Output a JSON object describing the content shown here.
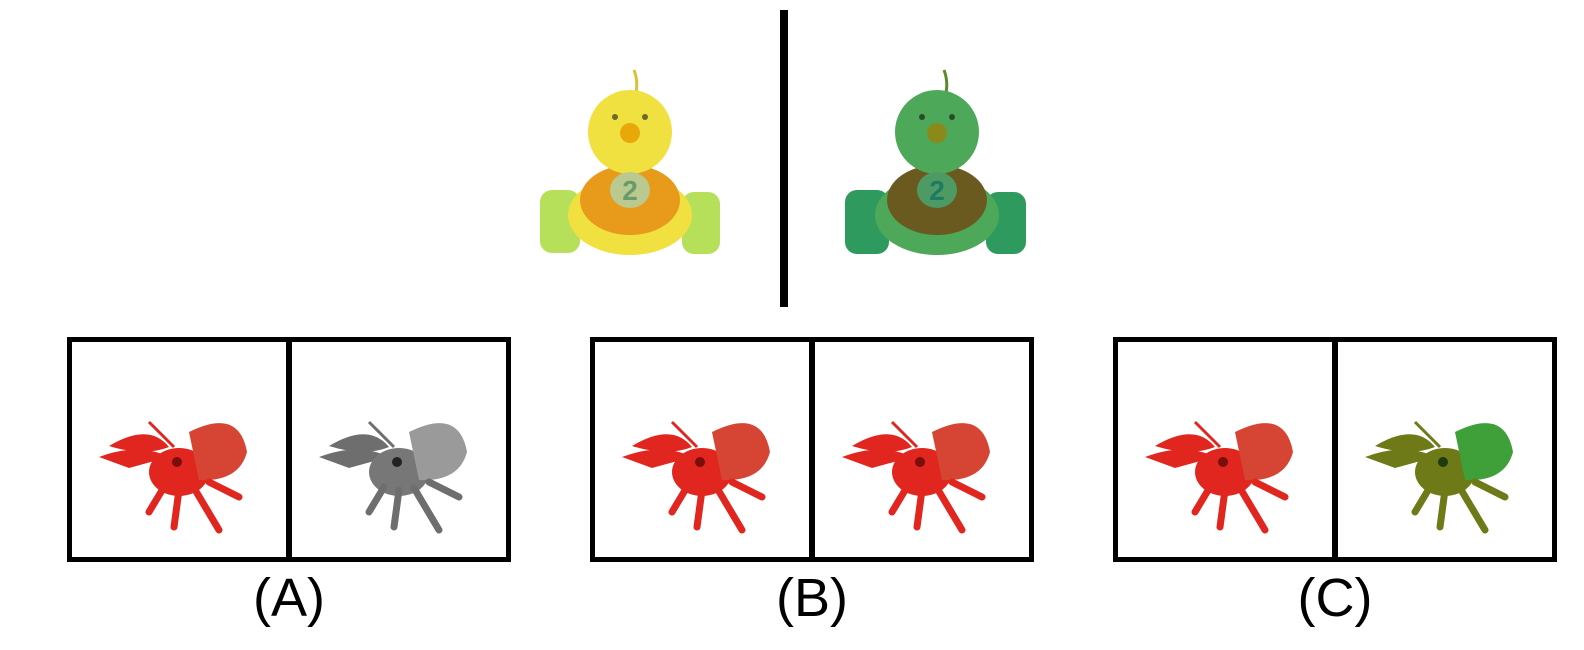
{
  "example": {
    "left": {
      "number": "2",
      "body_color": "#f0e040",
      "wheel_color": "#b6df5a",
      "chest_color": "#e89a1a",
      "badge_color": "#b9c98f",
      "number_color": "#6b9a6a"
    },
    "right": {
      "number": "2",
      "body_color": "#4ea85a",
      "wheel_color": "#2f9a5e",
      "chest_color": "#6b5a20",
      "badge_color": "#4d9a64",
      "number_color": "#1f7a62"
    }
  },
  "options": [
    {
      "label": "(A)",
      "left_color": "#e0261f",
      "right_color": "#7a7a7a"
    },
    {
      "label": "(B)",
      "left_color": "#e0261f",
      "right_color": "#e0261f"
    },
    {
      "label": "(C)",
      "left_color": "#e0261f",
      "right_color": "#6e7a18",
      "right_shell_color": "#3fa03a"
    }
  ]
}
